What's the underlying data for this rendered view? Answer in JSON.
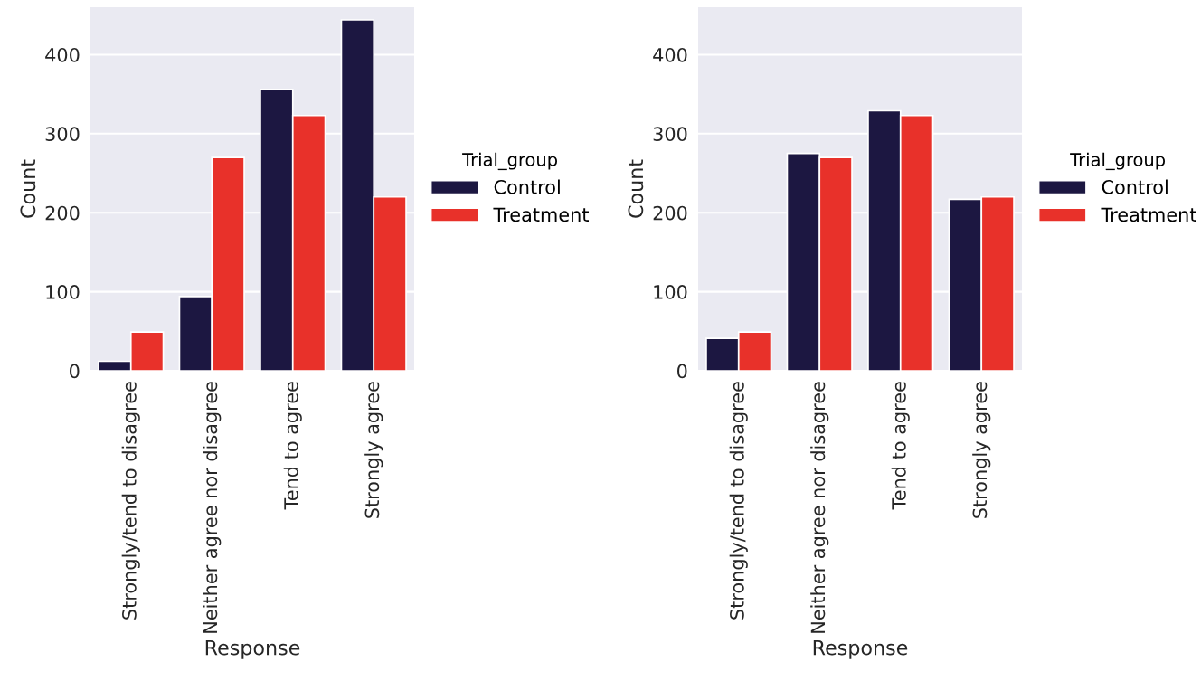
{
  "chart_data": [
    {
      "type": "bar",
      "xlabel": "Response",
      "ylabel": "Count",
      "legend_title": "Trial_group",
      "legend": "right",
      "categories": [
        "Strongly/tend to disagree",
        "Neither agree nor disagree",
        "Tend to agree",
        "Strongly agree"
      ],
      "series": [
        {
          "name": "Control",
          "color": "#1c1741",
          "values": [
            12,
            94,
            356,
            444
          ]
        },
        {
          "name": "Treatment",
          "color": "#e8312a",
          "values": [
            49,
            270,
            323,
            220
          ]
        }
      ],
      "ylim": [
        0,
        460
      ],
      "yticks": [
        0,
        100,
        200,
        300,
        400
      ],
      "grid": "y"
    },
    {
      "type": "bar",
      "xlabel": "Response",
      "ylabel": "Count",
      "legend_title": "Trial_group",
      "legend": "right",
      "categories": [
        "Strongly/tend to disagree",
        "Neither agree nor disagree",
        "Tend to agree",
        "Strongly agree"
      ],
      "series": [
        {
          "name": "Control",
          "color": "#1c1741",
          "values": [
            41,
            275,
            329,
            217
          ]
        },
        {
          "name": "Treatment",
          "color": "#e8312a",
          "values": [
            49,
            270,
            323,
            220
          ]
        }
      ],
      "ylim": [
        0,
        460
      ],
      "yticks": [
        0,
        100,
        200,
        300,
        400
      ],
      "grid": "y"
    }
  ]
}
